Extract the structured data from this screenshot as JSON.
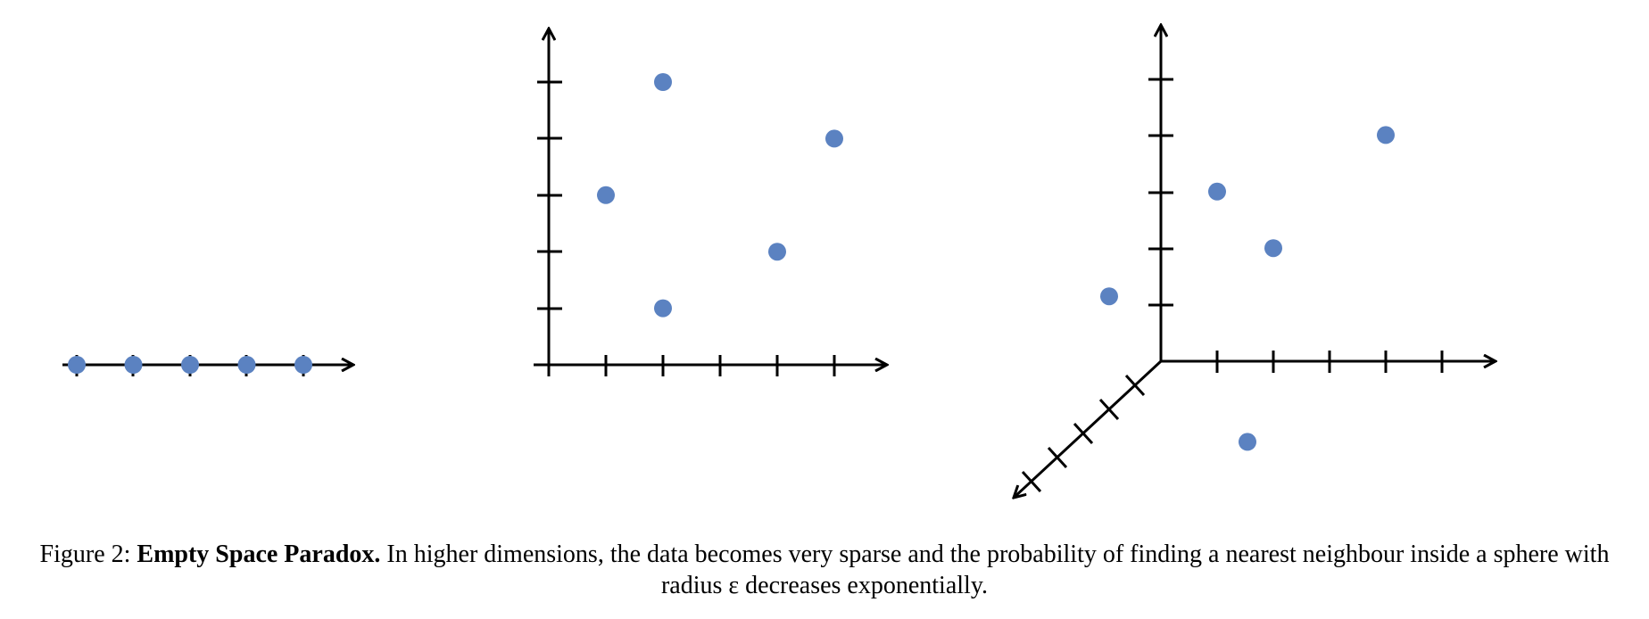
{
  "colors": {
    "point": "#5b82c1",
    "axis": "#000000"
  },
  "figure": {
    "panels": [
      {
        "id": "1d",
        "points": [
          [
            1
          ],
          [
            2
          ],
          [
            3
          ],
          [
            4
          ],
          [
            5
          ]
        ]
      },
      {
        "id": "2d",
        "points": [
          [
            1,
            3
          ],
          [
            2,
            5
          ],
          [
            2,
            1
          ],
          [
            4,
            2
          ],
          [
            5,
            4
          ]
        ]
      },
      {
        "id": "3d",
        "points": [
          [
            1,
            3,
            0
          ],
          [
            2,
            2,
            0
          ],
          [
            4,
            4,
            0
          ],
          [
            0,
            2,
            2
          ],
          [
            2,
            -1,
            1
          ]
        ]
      }
    ]
  },
  "caption": {
    "label": "Figure 2:",
    "title": "Empty Space Paradox.",
    "text": "In higher dimensions, the data becomes very sparse and the probability of finding a nearest neighbour inside a sphere with radius ε decreases exponentially."
  }
}
